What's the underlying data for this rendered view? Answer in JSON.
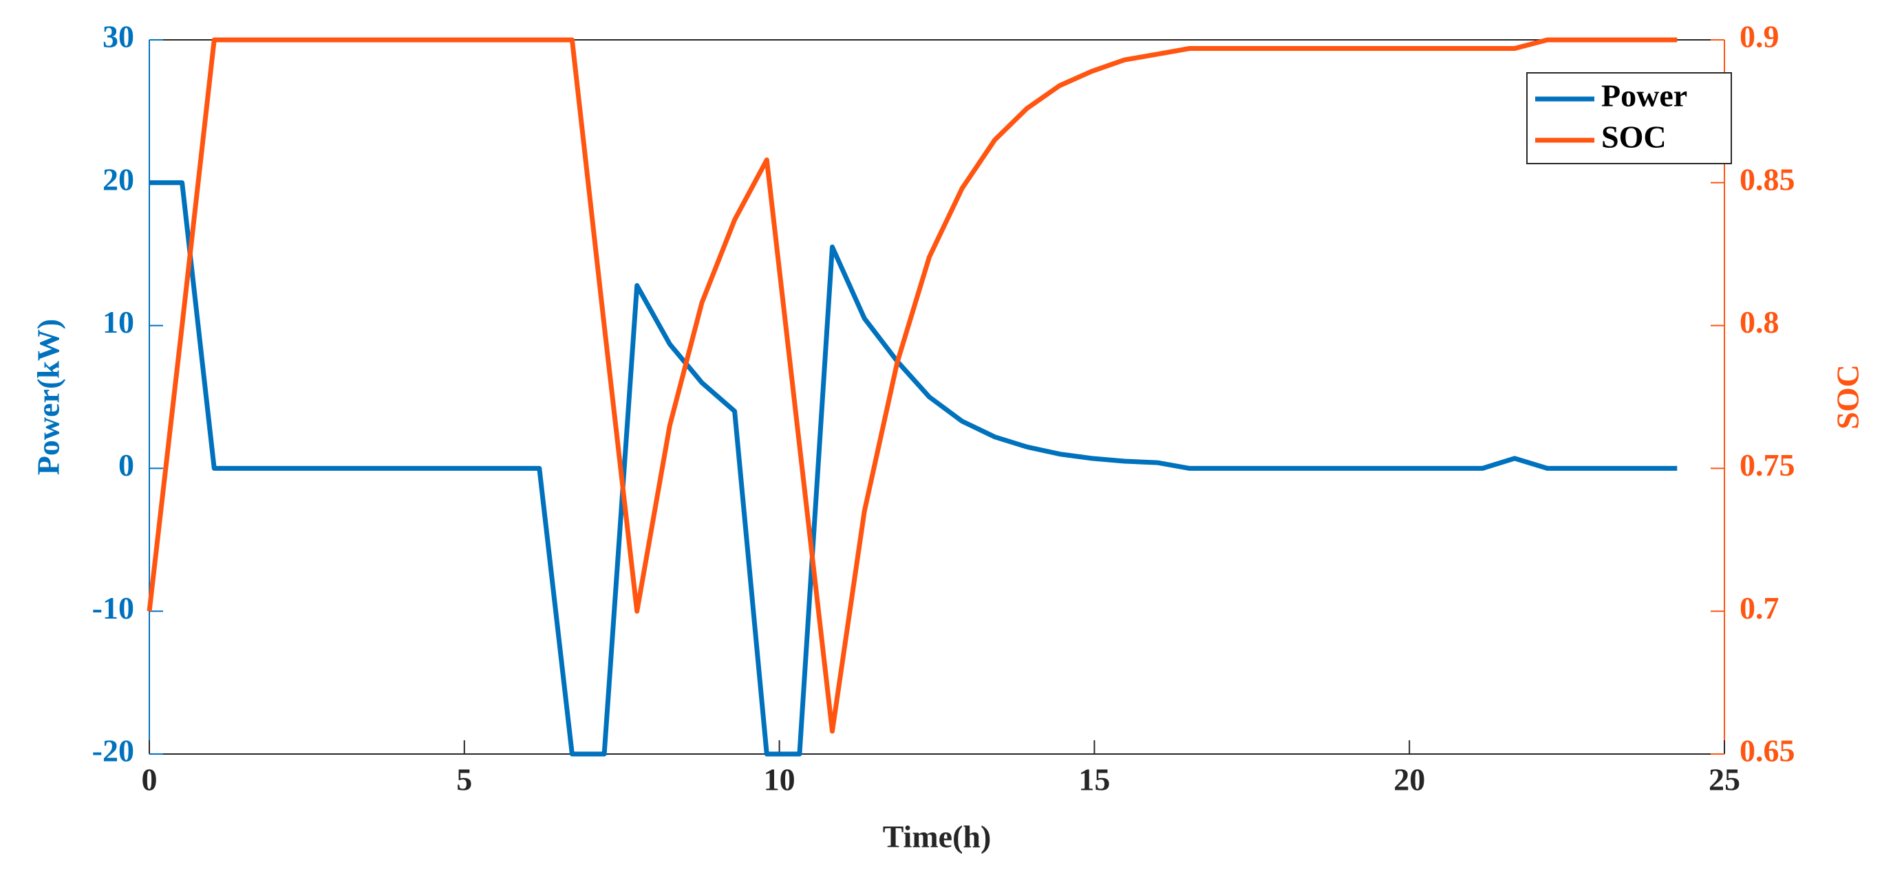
{
  "chart_data": {
    "type": "line",
    "xlabel": "Time(h)",
    "ylabel": "Power(kW)",
    "y2label": "SOC",
    "x": [
      0,
      0.52,
      1.03,
      1.55,
      2.06,
      2.58,
      3.1,
      3.61,
      4.13,
      4.64,
      5.16,
      5.68,
      6.19,
      6.71,
      7.22,
      7.74,
      8.26,
      8.77,
      9.29,
      9.8,
      10.32,
      10.84,
      11.35,
      11.87,
      12.38,
      12.9,
      13.42,
      13.93,
      14.45,
      14.96,
      15.48,
      16,
      16.51,
      17.03,
      17.54,
      18.06,
      18.58,
      19.09,
      19.61,
      20.12,
      20.64,
      21.16,
      21.67,
      22.19,
      22.7,
      23.22,
      23.74,
      24.25
    ],
    "series": [
      {
        "name": "Power",
        "color": "#0072bd",
        "axis": "y",
        "values": [
          20,
          20,
          0,
          0,
          0,
          0,
          0,
          0,
          0,
          0,
          0,
          0,
          0,
          -20,
          -20,
          12.8,
          8.7,
          6,
          4,
          -20,
          -20,
          15.5,
          10.5,
          7.5,
          5,
          3.3,
          2.2,
          1.5,
          1,
          0.7,
          0.5,
          0.4,
          0,
          0,
          0,
          0,
          0,
          0,
          0,
          0,
          0,
          0,
          0.7,
          0,
          0,
          0,
          0,
          0
        ]
      },
      {
        "name": "SOC",
        "color": "#ff5511",
        "axis": "y2",
        "values": [
          0.7,
          0.8,
          0.9,
          0.9,
          0.9,
          0.9,
          0.9,
          0.9,
          0.9,
          0.9,
          0.9,
          0.9,
          0.9,
          0.9,
          0.8,
          0.7,
          0.765,
          0.808,
          0.837,
          0.858,
          0.758,
          0.658,
          0.735,
          0.787,
          0.824,
          0.848,
          0.865,
          0.876,
          0.884,
          0.889,
          0.893,
          0.895,
          0.897,
          0.897,
          0.897,
          0.897,
          0.897,
          0.897,
          0.897,
          0.897,
          0.897,
          0.897,
          0.897,
          0.9,
          0.9,
          0.9,
          0.9,
          0.9
        ]
      }
    ],
    "xlim": [
      0,
      25
    ],
    "xticks": [
      0,
      5,
      10,
      15,
      20,
      25
    ],
    "ylim": [
      -20,
      30
    ],
    "yticks": [
      -20,
      -10,
      0,
      10,
      20,
      30
    ],
    "y2lim": [
      0.65,
      0.9
    ],
    "y2ticks": [
      0.65,
      0.7,
      0.75,
      0.8,
      0.85,
      0.9
    ],
    "legend": "top-right",
    "grid": false
  }
}
